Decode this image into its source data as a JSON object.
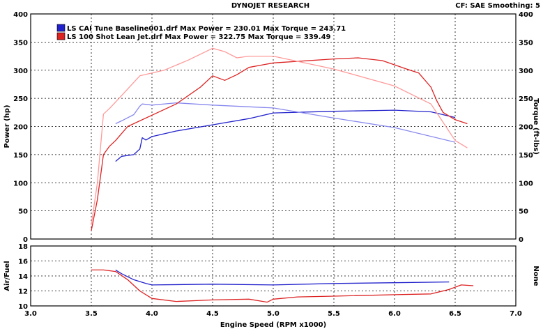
{
  "header": {
    "title": "DYNOJET RESEARCH",
    "settings": "CF: SAE  Smoothing: 5"
  },
  "chart_data": [
    {
      "type": "line",
      "name": "power-torque-chart",
      "xlabel": "",
      "ylabel": "Power (hp)",
      "y2label": "Torque (ft-lbs)",
      "xlim": [
        3.0,
        7.0
      ],
      "ylim": [
        0,
        400
      ],
      "y2lim": [
        0,
        400
      ],
      "xticks": [
        "3.0",
        "3.5",
        "4.0",
        "4.5",
        "5.0",
        "5.5",
        "6.0",
        "6.5",
        "7.0"
      ],
      "yticks": [
        "0",
        "50",
        "100",
        "150",
        "200",
        "250",
        "300",
        "350",
        "400"
      ],
      "y2ticks": [
        "0",
        "50",
        "100",
        "150",
        "200",
        "250",
        "300",
        "350",
        "400"
      ],
      "grid": true,
      "legend_position": "top-left",
      "legend": [
        {
          "label": "LS CAI Tune Baseline001.drf Max Power = 230.01 Max Torque = 243.71",
          "color": "#2222cc"
        },
        {
          "label": "LS 100 Shot Lean Jet.drf Max Power = 322.75 Max Torque = 339.49",
          "color": "#dd2222"
        }
      ],
      "series": [
        {
          "measure": "power",
          "run": "LS CAI Tune Baseline001.drf",
          "color": "#2222cc",
          "x": [
            3.7,
            3.75,
            3.85,
            3.9,
            3.92,
            3.95,
            4.0,
            4.2,
            4.5,
            4.8,
            5.0,
            5.5,
            6.0,
            6.3,
            6.5
          ],
          "y": [
            138,
            147,
            150,
            160,
            180,
            176,
            182,
            192,
            203,
            214,
            224,
            227,
            229,
            226,
            216
          ]
        },
        {
          "measure": "torque",
          "run": "LS CAI Tune Baseline001.drf",
          "color": "#8888ee",
          "x": [
            3.7,
            3.75,
            3.85,
            3.9,
            3.92,
            4.0,
            4.2,
            4.5,
            5.0,
            5.5,
            6.0,
            6.5
          ],
          "y": [
            205,
            210,
            221,
            236,
            240,
            238,
            242,
            238,
            233,
            215,
            198,
            172
          ]
        },
        {
          "measure": "power",
          "run": "LS 100 Shot Lean Jet.drf",
          "color": "#dd2222",
          "x": [
            3.5,
            3.55,
            3.6,
            3.65,
            3.7,
            3.8,
            4.0,
            4.2,
            4.4,
            4.5,
            4.6,
            4.7,
            4.8,
            5.0,
            5.5,
            5.7,
            5.9,
            6.1,
            6.2,
            6.3,
            6.35,
            6.4,
            6.5,
            6.6
          ],
          "y": [
            15,
            70,
            150,
            165,
            175,
            200,
            220,
            240,
            270,
            290,
            282,
            292,
            305,
            313,
            320,
            322,
            317,
            302,
            295,
            270,
            245,
            225,
            212,
            205
          ]
        },
        {
          "measure": "torque",
          "run": "LS 100 Shot Lean Jet.drf",
          "color": "#ff9999",
          "x": [
            3.5,
            3.55,
            3.6,
            3.65,
            3.75,
            3.9,
            4.1,
            4.3,
            4.5,
            4.6,
            4.7,
            4.8,
            5.0,
            5.5,
            6.0,
            6.3,
            6.5,
            6.6
          ],
          "y": [
            25,
            100,
            222,
            232,
            255,
            290,
            300,
            318,
            339,
            333,
            322,
            325,
            325,
            302,
            272,
            240,
            175,
            162
          ]
        }
      ]
    },
    {
      "type": "line",
      "name": "air-fuel-chart",
      "xlabel": "Engine Speed (RPM x1000)",
      "ylabel": "Air/Fuel",
      "y2label": "None",
      "xlim": [
        3.0,
        7.0
      ],
      "ylim": [
        10,
        18
      ],
      "xticks": [
        "3.0",
        "3.5",
        "4.0",
        "4.5",
        "5.0",
        "5.5",
        "6.0",
        "6.5",
        "7.0"
      ],
      "yticks": [
        "10",
        "12",
        "14",
        "16",
        "18"
      ],
      "grid": true,
      "series": [
        {
          "run": "LS CAI Tune Baseline001.drf",
          "color": "#2222cc",
          "x": [
            3.7,
            3.75,
            3.85,
            3.95,
            4.0,
            4.5,
            5.0,
            5.5,
            6.0,
            6.45
          ],
          "y": [
            14.8,
            14.3,
            13.5,
            13.0,
            12.8,
            12.9,
            12.8,
            13.0,
            13.1,
            13.2
          ]
        },
        {
          "run": "LS 100 Shot Lean Jet.drf",
          "color": "#dd2222",
          "x": [
            3.5,
            3.6,
            3.7,
            3.8,
            3.9,
            4.0,
            4.2,
            4.5,
            4.8,
            4.95,
            5.0,
            5.2,
            5.5,
            6.0,
            6.3,
            6.45,
            6.55,
            6.65
          ],
          "y": [
            14.8,
            14.8,
            14.6,
            13.5,
            12.0,
            11.0,
            10.6,
            10.8,
            10.9,
            10.5,
            10.9,
            11.2,
            11.3,
            11.5,
            11.6,
            12.2,
            12.8,
            12.7
          ]
        }
      ]
    }
  ]
}
